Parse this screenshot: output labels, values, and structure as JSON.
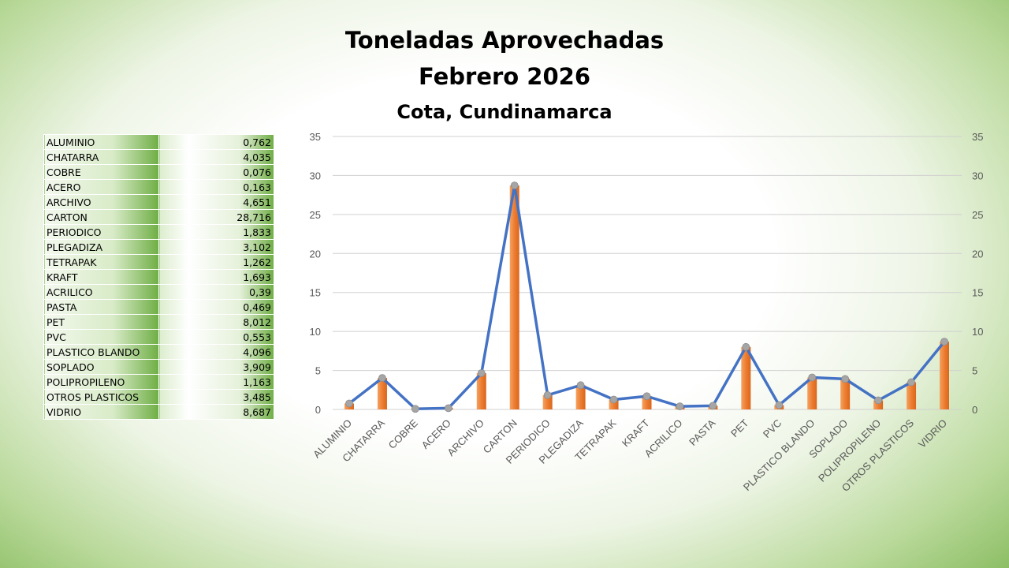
{
  "title": "Toneladas Aprovechadas",
  "subtitle": "Febrero 2026",
  "location": "Cota, Cundinamarca",
  "colors": {
    "bar": "#ed7d31",
    "line": "#4472c4",
    "marker": "#a5a5a5"
  },
  "chart_data": {
    "type": "bar",
    "title": "Toneladas Aprovechadas Febrero 2026 Cota, Cundinamarca",
    "categories": [
      "ALUMINIO",
      "CHATARRA",
      "COBRE",
      "ACERO",
      "ARCHIVO",
      "CARTON",
      "PERIODICO",
      "PLEGADIZA",
      "TETRAPAK",
      "KRAFT",
      "ACRILICO",
      "PASTA",
      "PET",
      "PVC",
      "PLASTICO BLANDO",
      "SOPLADO",
      "POLIPROPILENO",
      "OTROS PLASTICOS",
      "VIDRIO"
    ],
    "values": [
      0.762,
      4.035,
      0.076,
      0.163,
      4.651,
      28.716,
      1.833,
      3.102,
      1.262,
      1.693,
      0.39,
      0.469,
      8.012,
      0.553,
      4.096,
      3.909,
      1.163,
      3.485,
      8.687
    ],
    "display_values": [
      "0,762",
      "4,035",
      "0,076",
      "0,163",
      "4,651",
      "28,716",
      "1,833",
      "3,102",
      "1,262",
      "1,693",
      "0,39",
      "0,469",
      "8,012",
      "0,553",
      "4,096",
      "3,909",
      "1,163",
      "3,485",
      "8,687"
    ],
    "overlay": "line with markers on bars (same series)",
    "ylim": [
      0,
      35
    ],
    "yticks": [
      0,
      5,
      10,
      15,
      20,
      25,
      30,
      35
    ],
    "secondary_axis": true,
    "grid": true
  }
}
